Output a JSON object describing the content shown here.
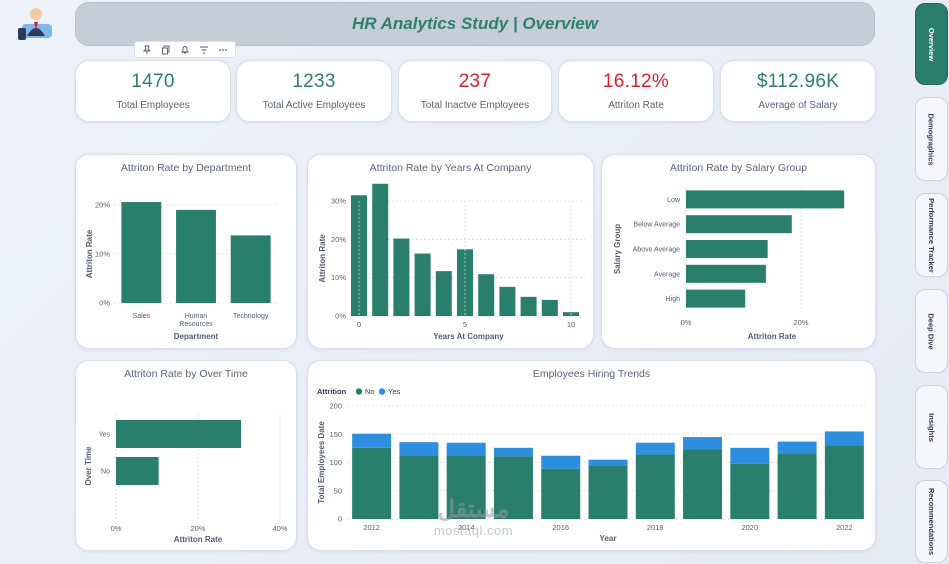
{
  "header": {
    "title": "HR Analytics Study | Overview"
  },
  "kpis": [
    {
      "value": "1470",
      "label": "Total Employees",
      "color": "#2d7f6e"
    },
    {
      "value": "1233",
      "label": "Total Active Employees",
      "color": "#2d7f6e"
    },
    {
      "value": "237",
      "label": "Total Inactve Employees",
      "color": "#d2232a"
    },
    {
      "value": "16.12%",
      "label": "Attriton Rate",
      "color": "#d2232a"
    },
    {
      "value": "$112.96K",
      "label": "Average of Salary",
      "color": "#2d7f6e"
    }
  ],
  "nav": [
    {
      "label": "Overview",
      "active": true
    },
    {
      "label": "Demographics",
      "active": false
    },
    {
      "label": "Performance Tracker",
      "active": false
    },
    {
      "label": "Deep Dive",
      "active": false
    },
    {
      "label": "Insights",
      "active": false
    },
    {
      "label": "Recommendations",
      "active": false
    }
  ],
  "icons": [
    "pin-icon",
    "copy-icon",
    "bell-icon",
    "filter-icon",
    "more-icon"
  ],
  "watermark": {
    "arabic": "مستقل",
    "latin": "mostaql.com"
  },
  "colors": {
    "primary": "#2a7f6c",
    "secondary": "#2e8fe0",
    "grid": "#d6dbe4"
  },
  "chart_data": [
    {
      "id": "dept",
      "type": "bar",
      "title": "Attriton Rate by Department",
      "categories": [
        "Sales",
        "Human Resources",
        "Technology"
      ],
      "category_lines": [
        [
          "Sales"
        ],
        [
          "Human",
          "Resources"
        ],
        [
          "Technology"
        ]
      ],
      "values": [
        20.6,
        19.0,
        13.8
      ],
      "xlabel": "Department",
      "ylabel": "Attriton Rate",
      "yticks": [
        "0%",
        "10%",
        "20%"
      ],
      "ylim": [
        0,
        22
      ]
    },
    {
      "id": "years",
      "type": "bar",
      "title": "Attriton Rate by Years At Company",
      "x": [
        0,
        1,
        2,
        3,
        4,
        5,
        6,
        7,
        8,
        9,
        10
      ],
      "values": [
        31.5,
        34.5,
        20.2,
        16.3,
        11.7,
        17.4,
        10.9,
        7.6,
        5.0,
        4.2,
        1.0
      ],
      "xlabel": "Years At Company",
      "ylabel": "Attriton Rate",
      "yticks": [
        "0%",
        "10%",
        "20%",
        "30%"
      ],
      "xticks": [
        "0",
        "5",
        "10"
      ],
      "ylim": [
        0,
        35
      ]
    },
    {
      "id": "salary",
      "type": "bar",
      "orientation": "horizontal",
      "title": "Attriton Rate by Salary Group",
      "categories": [
        "Low",
        "Below Average",
        "Above Average",
        "Average",
        "High"
      ],
      "values": [
        27.5,
        18.4,
        14.2,
        13.9,
        10.3
      ],
      "xlabel": "Attriton Rate",
      "ylabel": "Salary Group",
      "xticks": [
        "0%",
        "20%"
      ],
      "xlim": [
        0,
        29
      ]
    },
    {
      "id": "overtime",
      "type": "bar",
      "orientation": "horizontal",
      "title": "Attriton Rate by Over Time",
      "categories": [
        "Yes",
        "No"
      ],
      "values": [
        30.5,
        10.4
      ],
      "xlabel": "Attriton Rate",
      "ylabel": "Over Time",
      "xticks": [
        "0%",
        "20%",
        "40%"
      ],
      "xlim": [
        0,
        40
      ]
    },
    {
      "id": "hiring",
      "type": "bar",
      "stacked": true,
      "title": "Employees Hiring Trends",
      "legend_title": "Attrition",
      "legend_position": "top-left",
      "categories": [
        "2012",
        "2013",
        "2014",
        "2015",
        "2016",
        "2017",
        "2018",
        "2019",
        "2020",
        "2021",
        "2022"
      ],
      "series": [
        {
          "name": "No",
          "values": [
            126,
            113,
            113,
            111,
            89,
            95,
            114,
            123,
            98,
            115,
            130
          ]
        },
        {
          "name": "Yes",
          "values": [
            25,
            23,
            22,
            15,
            23,
            10,
            21,
            22,
            28,
            22,
            25
          ]
        }
      ],
      "xlabel": "Year",
      "ylabel": "Total Employees Date",
      "xticks": [
        "2012",
        "2014",
        "2016",
        "2018",
        "2020",
        "2022"
      ],
      "yticks": [
        "0",
        "50",
        "100",
        "150",
        "200"
      ],
      "ylim": [
        0,
        200
      ]
    }
  ]
}
